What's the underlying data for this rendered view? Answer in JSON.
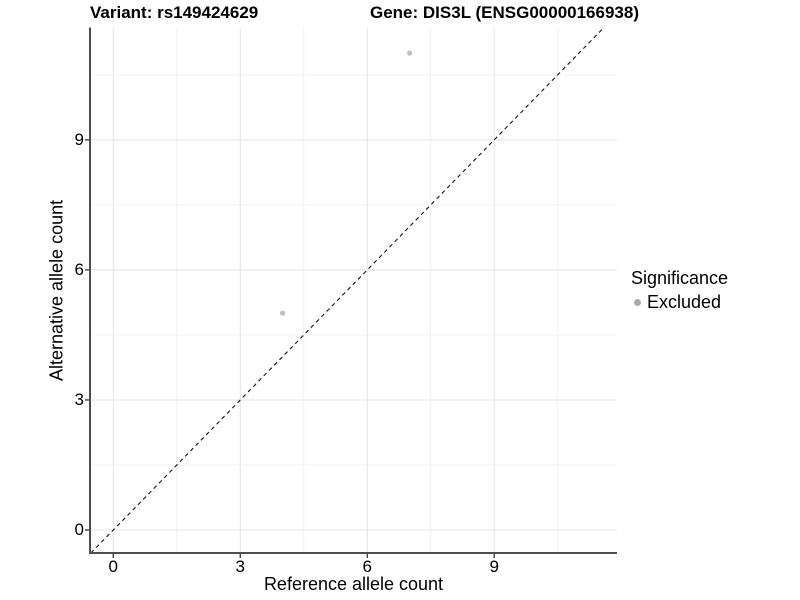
{
  "title": {
    "left": "Variant: rs149424629",
    "right": "Gene: DIS3L (ENSG00000166938)"
  },
  "chart_data": {
    "type": "scatter",
    "title": "Variant: rs149424629 / Gene: DIS3L (ENSG00000166938)",
    "xlabel": "Reference allele count",
    "ylabel": "Alternative allele count",
    "xlim": [
      -0.55,
      11.9
    ],
    "ylim": [
      -0.53,
      11.58
    ],
    "x_major_ticks": [
      0,
      3,
      6,
      9
    ],
    "x_tick_labels": [
      "0",
      "3",
      "6",
      "9"
    ],
    "y_major_ticks": [
      0,
      3,
      6,
      9
    ],
    "y_tick_labels": [
      "0",
      "3",
      "6",
      "9"
    ],
    "x_minor_ticks": [
      1.5,
      4.5,
      7.5,
      10.5
    ],
    "y_minor_ticks": [
      1.5,
      4.5,
      7.5,
      10.5
    ],
    "grid": "on",
    "series": [
      {
        "name": "Excluded",
        "color": "#c0c0c0",
        "point_radius_px": 2.6,
        "points": [
          {
            "x": 7,
            "y": 11
          },
          {
            "x": 4,
            "y": 5
          }
        ]
      }
    ],
    "reference_line": {
      "type": "identity",
      "equation": "y = x",
      "style": "dashed",
      "color": "#111111"
    },
    "legend": {
      "title": "Significance",
      "position": "right",
      "items": [
        {
          "label": "Excluded",
          "color": "#aaaaaa"
        }
      ]
    }
  },
  "colors": {
    "background": "#ffffff",
    "grid_major": "#e4e4e4",
    "grid_minor": "#f0f0f0",
    "axis_line": "#4d4d4d",
    "tick_mark": "#333333",
    "text": "#000000"
  }
}
